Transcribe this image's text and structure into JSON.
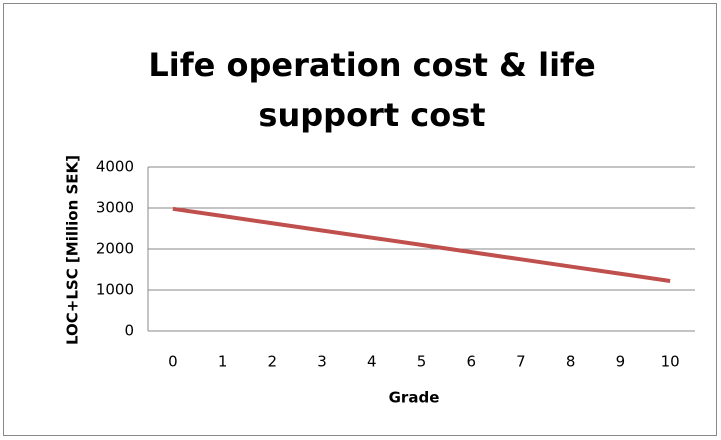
{
  "chart_data": {
    "type": "line",
    "title": "Life operation cost & life support cost",
    "x_label": "Grade",
    "y_label": "LOC+LSC [Million SEK]",
    "categories": [
      "0",
      "1",
      "2",
      "3",
      "4",
      "5",
      "6",
      "7",
      "8",
      "9",
      "10"
    ],
    "series": [
      {
        "name": "LOC+LSC",
        "color": "#c0504d",
        "values": [
          2980,
          2804,
          2628,
          2452,
          2276,
          2100,
          1924,
          1748,
          1572,
          1396,
          1220
        ]
      }
    ],
    "ylim": [
      0,
      4000
    ],
    "yticks": [
      0,
      1000,
      2000,
      3000,
      4000
    ],
    "grid": true,
    "legend": false
  }
}
